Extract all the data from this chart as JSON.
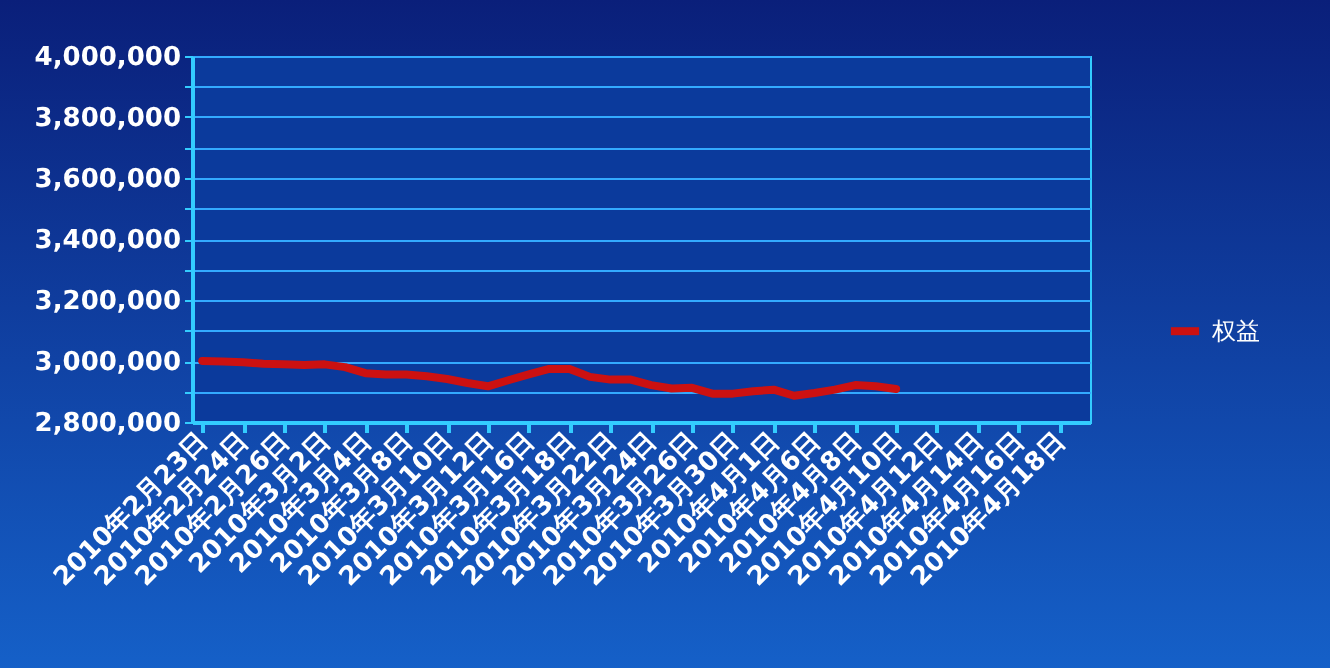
{
  "chart_data": {
    "type": "line",
    "categories": [
      "2010年2月23日",
      null,
      "2010年2月24日",
      null,
      "2010年2月26日",
      null,
      "2010年3月2日",
      null,
      "2010年3月4日",
      null,
      "2010年3月8日",
      null,
      "2010年3月10日",
      null,
      "2010年3月12日",
      null,
      "2010年3月16日",
      null,
      "2010年3月18日",
      null,
      "2010年3月22日",
      null,
      "2010年3月24日",
      null,
      "2010年3月26日",
      null,
      "2010年3月30日",
      null,
      "2010年4月1日",
      null,
      "2010年4月6日",
      null,
      "2010年4月8日",
      null,
      "2010年4月10日",
      null,
      "2010年4月12日",
      null,
      "2010年4月14日",
      null,
      "2010年4月16日",
      null,
      "2010年4月18日",
      null
    ],
    "series": [
      {
        "name": "权益",
        "color": "#cc1111",
        "values": [
          3000000,
          2998000,
          2996000,
          2991000,
          2989000,
          2987000,
          2989000,
          2980000,
          2960000,
          2956000,
          2956000,
          2950000,
          2941000,
          2928000,
          2917000,
          2937000,
          2956000,
          2974000,
          2974000,
          2948000,
          2939000,
          2939000,
          2921000,
          2910000,
          2912000,
          2893000,
          2893000,
          2901000,
          2906000,
          2886000,
          2895000,
          2906000,
          2921000,
          2917000,
          2908000,
          null,
          null,
          null,
          null,
          null,
          null,
          null,
          null,
          null
        ]
      }
    ],
    "ylim": [
      2800000,
      4000000
    ],
    "yticks": [
      {
        "value": 2800000,
        "label": "2,800,000"
      },
      {
        "value": 2900000,
        "label": null
      },
      {
        "value": 3000000,
        "label": "3,000,000"
      },
      {
        "value": 3100000,
        "label": null
      },
      {
        "value": 3200000,
        "label": "3,200,000"
      },
      {
        "value": 3300000,
        "label": null
      },
      {
        "value": 3400000,
        "label": "3,400,000"
      },
      {
        "value": 3500000,
        "label": null
      },
      {
        "value": 3600000,
        "label": "3,600,000"
      },
      {
        "value": 3700000,
        "label": null
      },
      {
        "value": 3800000,
        "label": "3,800,000"
      },
      {
        "value": 3900000,
        "label": null
      },
      {
        "value": 4000000,
        "label": "4,000,000"
      }
    ],
    "grid": "y",
    "legend": "right",
    "marker": "none",
    "line_style": "solid"
  }
}
